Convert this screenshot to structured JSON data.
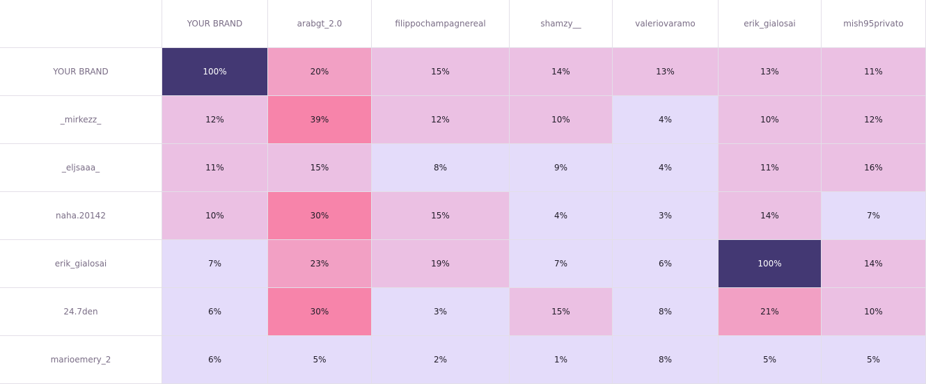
{
  "chart_data": {
    "type": "heatmap",
    "x_categories": [
      "YOUR BRAND",
      "arabgt_2.0",
      "filippochampagnereal",
      "shamzy__",
      "valeriovaramo",
      "erik_gialosai",
      "mish95privato"
    ],
    "y_categories": [
      "YOUR BRAND",
      "_mirkezz_",
      "_eljsaaa_",
      "naha.20142",
      "erik_gialosai",
      "24.7den",
      "marioemery_2"
    ],
    "values": [
      [
        100,
        20,
        15,
        14,
        13,
        13,
        11
      ],
      [
        12,
        39,
        12,
        10,
        4,
        10,
        12
      ],
      [
        11,
        15,
        8,
        9,
        4,
        11,
        16
      ],
      [
        10,
        30,
        15,
        4,
        3,
        14,
        7
      ],
      [
        7,
        23,
        19,
        7,
        6,
        100,
        14
      ],
      [
        6,
        30,
        3,
        15,
        8,
        21,
        10
      ],
      [
        6,
        5,
        2,
        1,
        8,
        5,
        5
      ]
    ],
    "value_labels": [
      [
        "100%",
        "20%",
        "15%",
        "14%",
        "13%",
        "13%",
        "11%"
      ],
      [
        "12%",
        "39%",
        "12%",
        "10%",
        "4%",
        "10%",
        "12%"
      ],
      [
        "11%",
        "15%",
        "8%",
        "9%",
        "4%",
        "11%",
        "16%"
      ],
      [
        "10%",
        "30%",
        "15%",
        "4%",
        "3%",
        "14%",
        "7%"
      ],
      [
        "7%",
        "23%",
        "19%",
        "7%",
        "6%",
        "100%",
        "14%"
      ],
      [
        "6%",
        "30%",
        "3%",
        "15%",
        "8%",
        "21%",
        "10%"
      ],
      [
        "6%",
        "5%",
        "2%",
        "1%",
        "8%",
        "5%",
        "5%"
      ]
    ],
    "color_scale": [
      {
        "min": 0,
        "color": "#e4dcfa"
      },
      {
        "min": 10,
        "color": "#ebc0e3"
      },
      {
        "min": 20,
        "color": "#f2a0c4"
      },
      {
        "min": 30,
        "color": "#f784aa"
      },
      {
        "min": 100,
        "color": "#433873"
      }
    ]
  }
}
